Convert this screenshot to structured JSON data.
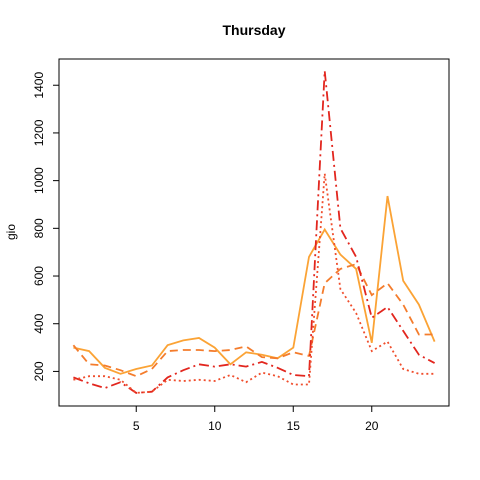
{
  "chart_data": {
    "type": "line",
    "title": "Thursday",
    "xlabel": "",
    "ylabel": "gio",
    "x": [
      1,
      2,
      3,
      4,
      5,
      6,
      7,
      8,
      9,
      10,
      11,
      12,
      13,
      14,
      15,
      16,
      17,
      18,
      19,
      20,
      21,
      22,
      23,
      24
    ],
    "xlim": [
      0.08,
      24.92
    ],
    "ylim": [
      55,
      1510
    ],
    "xticks": [
      5,
      10,
      15,
      20
    ],
    "yticks": [
      200,
      400,
      600,
      800,
      1000,
      1200,
      1400
    ],
    "grid": false,
    "series": [
      {
        "color": "#FBA335",
        "dash": "solid",
        "values": [
          300,
          285,
          215,
          190,
          210,
          225,
          310,
          330,
          340,
          300,
          230,
          280,
          270,
          255,
          300,
          680,
          795,
          690,
          630,
          320,
          935,
          580,
          480,
          325
        ]
      },
      {
        "color": "#F47C2C",
        "dash": "8,5",
        "values": [
          310,
          230,
          225,
          205,
          180,
          210,
          285,
          290,
          290,
          285,
          290,
          305,
          260,
          255,
          280,
          265,
          570,
          630,
          650,
          520,
          570,
          480,
          355,
          355
        ]
      },
      {
        "color": "#E2261E",
        "dash": "10,4,2,4",
        "values": [
          175,
          150,
          130,
          155,
          110,
          115,
          175,
          205,
          230,
          220,
          230,
          220,
          240,
          215,
          185,
          180,
          1460,
          800,
          680,
          425,
          470,
          370,
          270,
          235
        ]
      },
      {
        "color": "#F04E2D",
        "dash": "2,3",
        "values": [
          165,
          180,
          180,
          165,
          110,
          115,
          165,
          160,
          165,
          160,
          185,
          155,
          195,
          180,
          145,
          145,
          1030,
          545,
          445,
          285,
          325,
          210,
          190,
          190
        ]
      }
    ]
  }
}
